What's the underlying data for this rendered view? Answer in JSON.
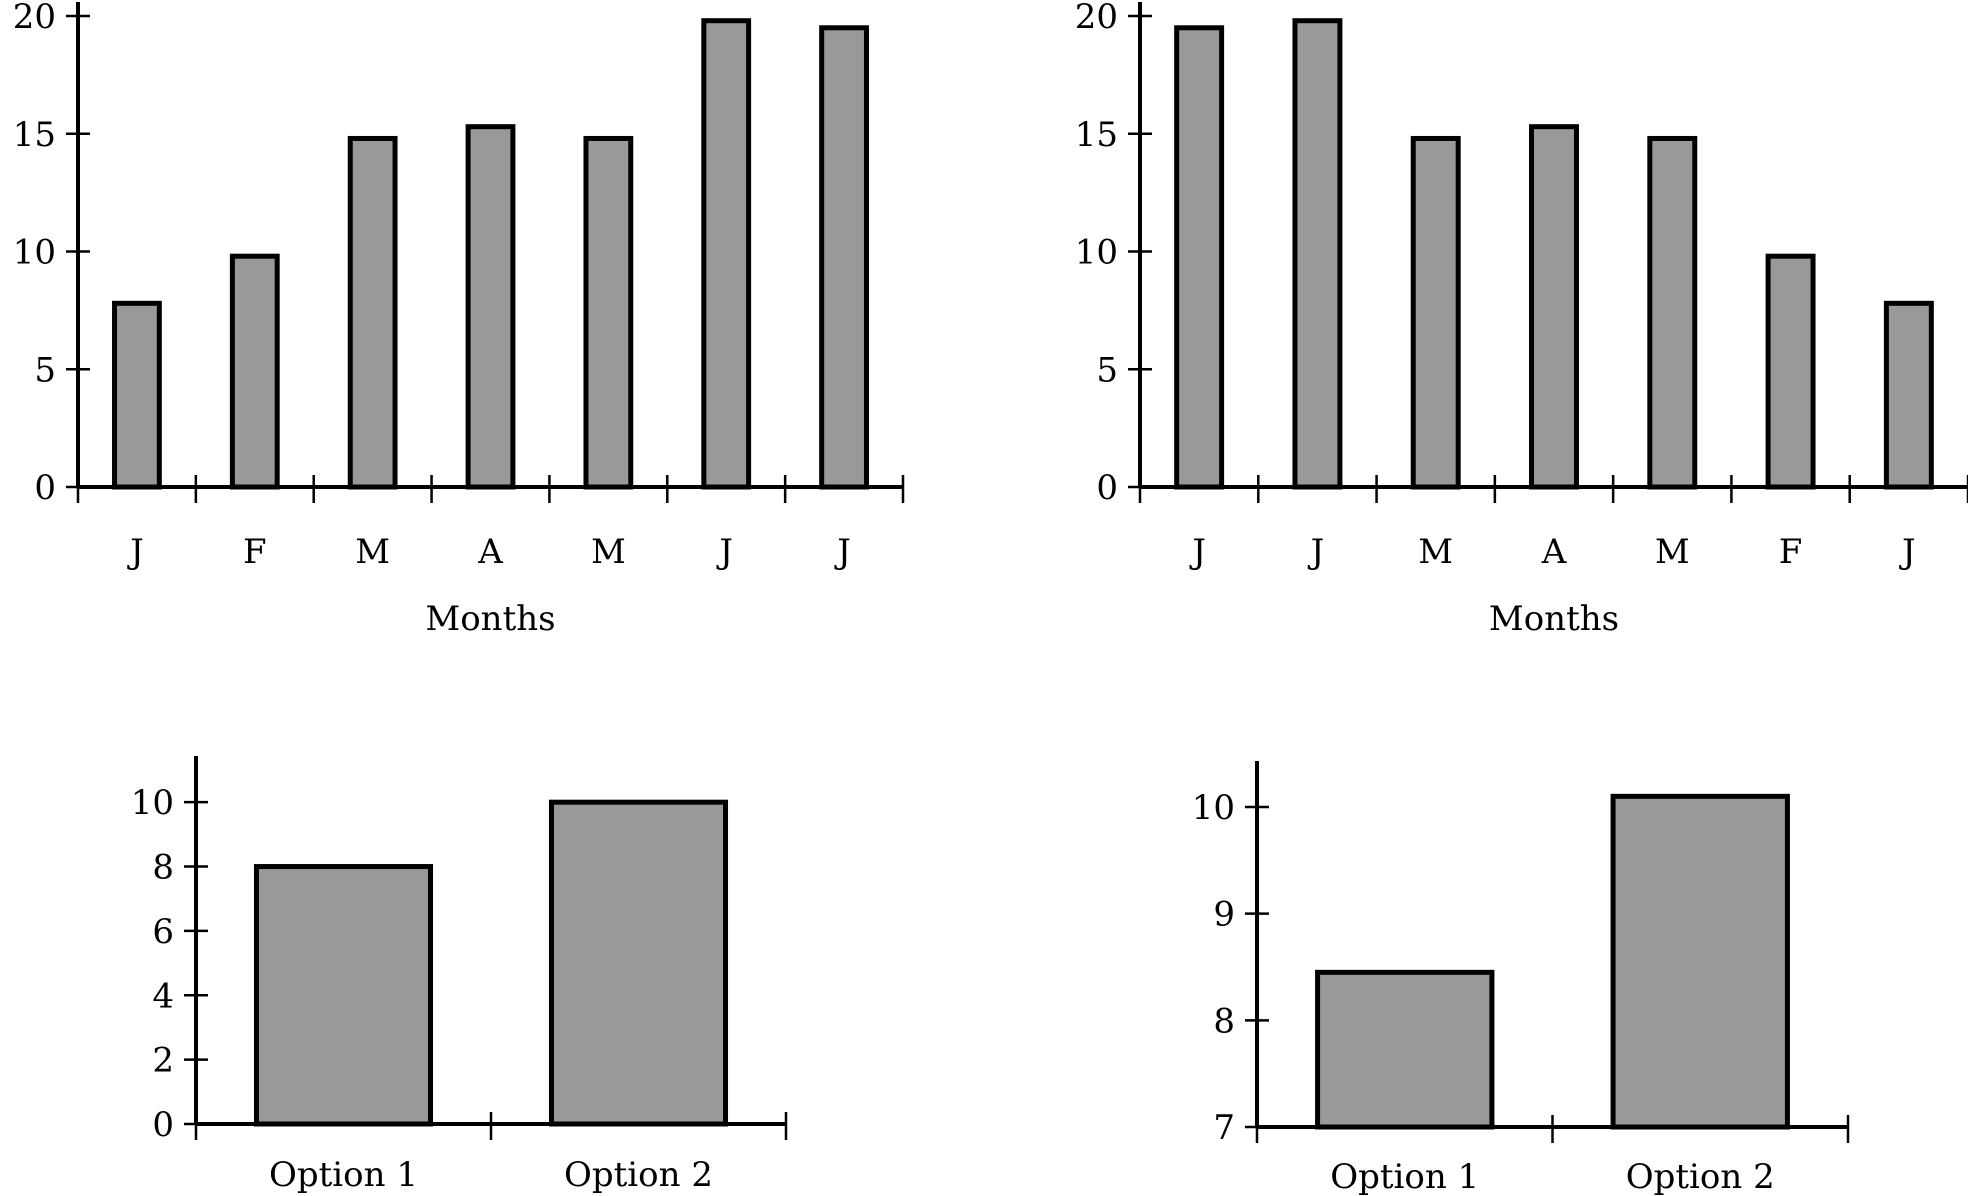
{
  "colors": {
    "bar_fill": "#999999",
    "bar_stroke": "#000000",
    "axis": "#000000"
  },
  "chart_data": [
    {
      "type": "bar",
      "categories": [
        "J",
        "F",
        "M",
        "A",
        "M",
        "J",
        "J"
      ],
      "values": [
        7.8,
        9.8,
        14.8,
        15.3,
        14.8,
        19.8,
        19.5
      ],
      "xlabel": "Months",
      "ylabel": "",
      "ylim": [
        0,
        20
      ],
      "yticks": [
        0,
        5,
        10,
        15,
        20
      ],
      "grid": false
    },
    {
      "type": "bar",
      "categories": [
        "J",
        "J",
        "M",
        "A",
        "M",
        "F",
        "J"
      ],
      "values": [
        19.5,
        19.8,
        14.8,
        15.3,
        14.8,
        9.8,
        7.8
      ],
      "xlabel": "Months",
      "ylabel": "",
      "ylim": [
        0,
        20
      ],
      "yticks": [
        0,
        5,
        10,
        15,
        20
      ],
      "grid": false
    },
    {
      "type": "bar",
      "categories": [
        "Option 1",
        "Option 2"
      ],
      "values": [
        8,
        10
      ],
      "xlabel": "",
      "ylabel": "",
      "ylim": [
        0,
        11
      ],
      "yticks": [
        0,
        2,
        4,
        6,
        8,
        10
      ],
      "grid": false
    },
    {
      "type": "bar",
      "categories": [
        "Option 1",
        "Option 2"
      ],
      "values": [
        8.45,
        10.1
      ],
      "xlabel": "",
      "ylabel": "",
      "ylim": [
        7,
        10.3
      ],
      "yticks": [
        7,
        8,
        9,
        10
      ],
      "grid": false
    }
  ]
}
